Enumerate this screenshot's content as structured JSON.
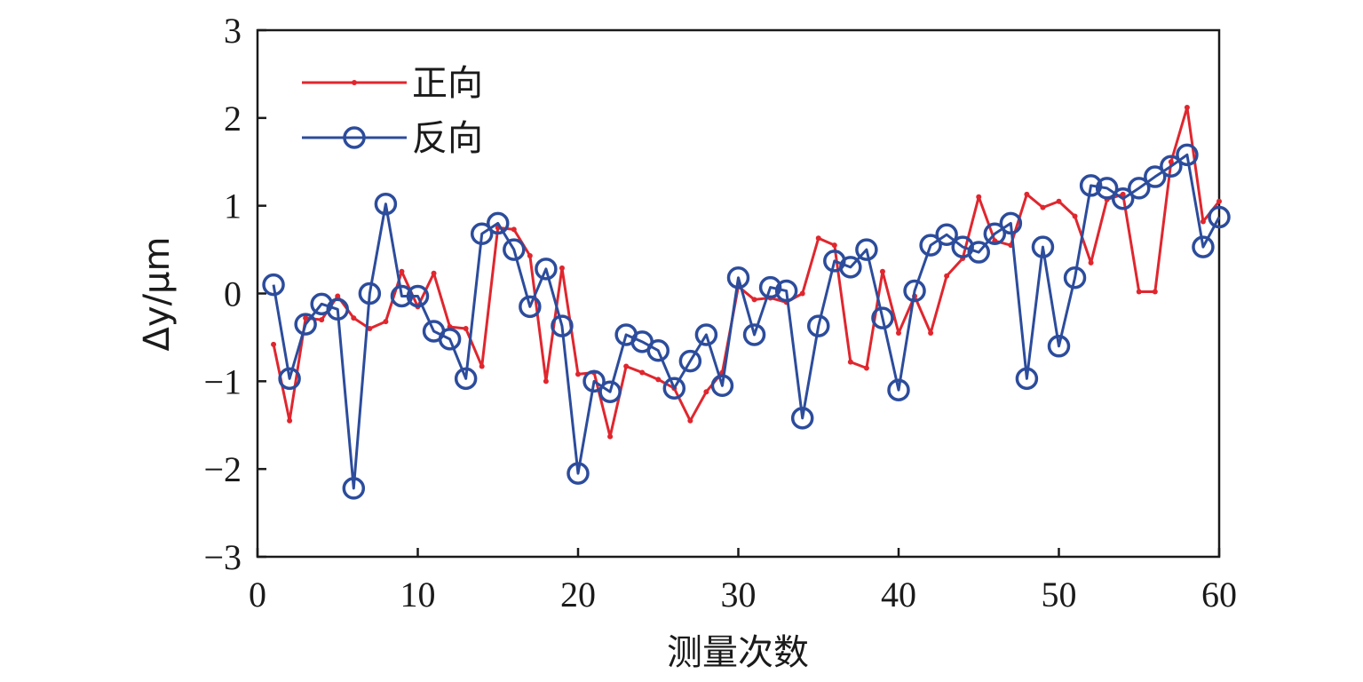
{
  "chart_data": {
    "type": "line",
    "title": "",
    "xlabel": "测量次数",
    "ylabel": "Δy/μm",
    "xlim": [
      0,
      60
    ],
    "ylim": [
      -3,
      3
    ],
    "xticks": [
      0,
      10,
      20,
      30,
      40,
      50,
      60
    ],
    "yticks": [
      -3,
      -2,
      -1,
      0,
      1,
      2,
      3
    ],
    "xtick_labels": [
      "0",
      "10",
      "20",
      "30",
      "40",
      "50",
      "60"
    ],
    "ytick_labels": [
      "−3",
      "−2",
      "−1",
      "0",
      "1",
      "2",
      "3"
    ],
    "grid": false,
    "legend_position": "top-left",
    "x": [
      1,
      2,
      3,
      4,
      5,
      6,
      7,
      8,
      9,
      10,
      11,
      12,
      13,
      14,
      15,
      16,
      17,
      18,
      19,
      20,
      21,
      22,
      23,
      24,
      25,
      26,
      27,
      28,
      29,
      30,
      31,
      32,
      33,
      34,
      35,
      36,
      37,
      38,
      39,
      40,
      41,
      42,
      43,
      44,
      45,
      46,
      47,
      48,
      49,
      50,
      51,
      52,
      53,
      54,
      55,
      56,
      57,
      58,
      59,
      60
    ],
    "series": [
      {
        "name": "正向",
        "color": "#e0262e",
        "marker": "dot",
        "values": [
          -0.58,
          -1.45,
          -0.28,
          -0.3,
          -0.03,
          -0.28,
          -0.4,
          -0.32,
          0.25,
          -0.15,
          0.23,
          -0.38,
          -0.4,
          -0.83,
          0.75,
          0.73,
          0.43,
          -1.0,
          0.29,
          -0.92,
          -0.9,
          -1.63,
          -0.83,
          -0.9,
          -0.98,
          -1.08,
          -1.45,
          -1.12,
          -0.9,
          0.08,
          -0.07,
          -0.05,
          -0.1,
          0.0,
          0.63,
          0.55,
          -0.78,
          -0.85,
          0.25,
          -0.45,
          -0.03,
          -0.45,
          0.2,
          0.4,
          1.1,
          0.6,
          0.55,
          1.13,
          0.98,
          1.05,
          0.88,
          0.35,
          1.07,
          1.13,
          0.02,
          0.02,
          1.5,
          2.12,
          0.82,
          1.05
        ]
      },
      {
        "name": "反向",
        "color": "#2c4c9c",
        "marker": "circle",
        "values": [
          0.1,
          -0.97,
          -0.35,
          -0.12,
          -0.18,
          -2.22,
          0.0,
          1.02,
          -0.03,
          -0.03,
          -0.43,
          -0.52,
          -0.97,
          0.68,
          0.8,
          0.5,
          -0.15,
          0.28,
          -0.37,
          -2.05,
          -1.0,
          -1.12,
          -0.47,
          -0.55,
          -0.65,
          -1.08,
          -0.77,
          -0.47,
          -1.05,
          0.18,
          -0.47,
          0.07,
          0.03,
          -1.42,
          -0.37,
          0.37,
          0.3,
          0.5,
          -0.28,
          -1.1,
          0.03,
          0.55,
          0.67,
          0.53,
          0.47,
          0.68,
          0.8,
          -0.97,
          0.53,
          -0.6,
          0.18,
          1.23,
          1.2,
          1.08,
          1.2,
          1.33,
          1.45,
          1.58,
          0.53,
          0.87
        ]
      }
    ]
  }
}
